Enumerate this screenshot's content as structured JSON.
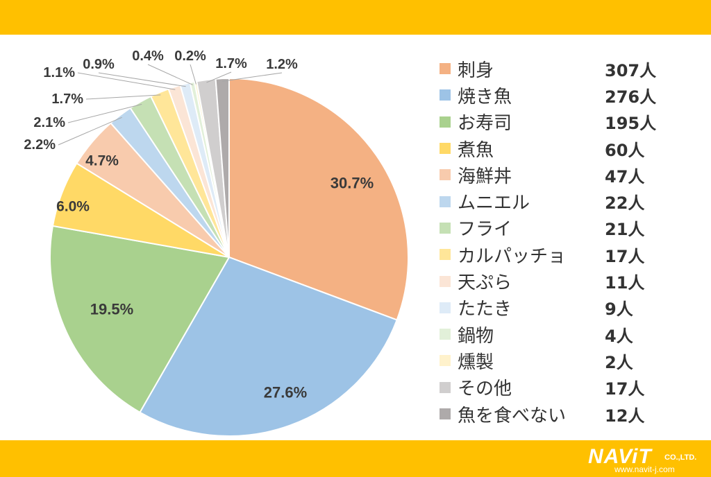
{
  "colors": {
    "band": "#FFC000",
    "slice_border": "#ffffff",
    "leader_line": "#A6A6A6",
    "label_text": "#3a3a3a"
  },
  "chart_data": {
    "type": "pie",
    "title": "",
    "legend_placement": "right",
    "start_angle_deg": 0,
    "direction": "clockwise",
    "slices": [
      {
        "label": "刺身",
        "count_label": "307人",
        "value": 307,
        "percent_label": "30.7%",
        "color": "#F4B183"
      },
      {
        "label": "焼き魚",
        "count_label": "276人",
        "value": 276,
        "percent_label": "27.6%",
        "color": "#9DC3E6"
      },
      {
        "label": "お寿司",
        "count_label": "195人",
        "value": 195,
        "percent_label": "19.5%",
        "color": "#A9D18E"
      },
      {
        "label": "煮魚",
        "count_label": "60人",
        "value": 60,
        "percent_label": "6.0%",
        "color": "#FFD966"
      },
      {
        "label": "海鮮丼",
        "count_label": "47人",
        "value": 47,
        "percent_label": "4.7%",
        "color": "#F8CBAD"
      },
      {
        "label": "ムニエル",
        "count_label": "22人",
        "value": 22,
        "percent_label": "2.2%",
        "color": "#BDD7EE"
      },
      {
        "label": "フライ",
        "count_label": "21人",
        "value": 21,
        "percent_label": "2.1%",
        "color": "#C5E0B4"
      },
      {
        "label": "カルパッチョ",
        "count_label": "17人",
        "value": 17,
        "percent_label": "1.7%",
        "color": "#FFE699"
      },
      {
        "label": "天ぷら",
        "count_label": "11人",
        "value": 11,
        "percent_label": "1.1%",
        "color": "#FBE5D6"
      },
      {
        "label": "たたき",
        "count_label": "9人",
        "value": 9,
        "percent_label": "0.9%",
        "color": "#DEEBF7"
      },
      {
        "label": "鍋物",
        "count_label": "4人",
        "value": 4,
        "percent_label": "0.4%",
        "color": "#E2F0D9"
      },
      {
        "label": "燻製",
        "count_label": "2人",
        "value": 2,
        "percent_label": "0.2%",
        "color": "#FFF2CC"
      },
      {
        "label": "その他",
        "count_label": "17人",
        "value": 17,
        "percent_label": "1.7%",
        "color": "#D0CECE"
      },
      {
        "label": "魚を食べない",
        "count_label": "12人",
        "value": 12,
        "percent_label": "1.2%",
        "color": "#AEAAAA"
      }
    ]
  },
  "logo": {
    "brand": "NAViT",
    "suffix": "CO.,LTD.",
    "url": "www.navit-j.com"
  }
}
